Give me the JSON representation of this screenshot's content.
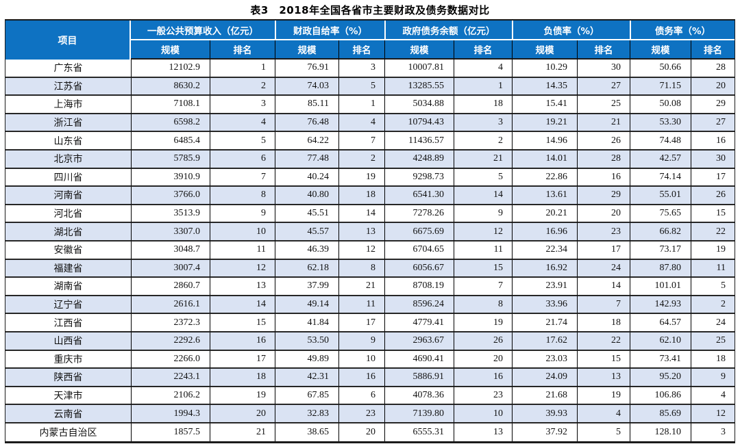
{
  "title": "表3　2018年全国各省市主要财政及债务数据对比",
  "colors": {
    "header_bg": "#0e72c2",
    "header_text": "#ffffff",
    "stripe_bg": "#dae3f3",
    "border_dark": "#1a1a1a",
    "body_text": "#111111"
  },
  "chart_data": {
    "type": "table",
    "title": "表3　2018年全国各省市主要财政及债务数据对比",
    "first_column_header": "项目",
    "column_groups": [
      "一般公共预算收入（亿元）",
      "财政自给率（%）",
      "政府债务余额（亿元）",
      "负债率（%）",
      "债务率（%）"
    ],
    "sub_headers": [
      "规模",
      "排名"
    ],
    "rows": [
      {
        "province": "广东省",
        "values": [
          "12102.9",
          "1",
          "76.91",
          "3",
          "10007.81",
          "4",
          "10.29",
          "30",
          "50.66",
          "28"
        ]
      },
      {
        "province": "江苏省",
        "values": [
          "8630.2",
          "2",
          "74.03",
          "5",
          "13285.55",
          "1",
          "14.35",
          "27",
          "71.15",
          "20"
        ]
      },
      {
        "province": "上海市",
        "values": [
          "7108.1",
          "3",
          "85.11",
          "1",
          "5034.88",
          "18",
          "15.41",
          "25",
          "50.08",
          "29"
        ]
      },
      {
        "province": "浙江省",
        "values": [
          "6598.2",
          "4",
          "76.48",
          "4",
          "10794.43",
          "3",
          "19.21",
          "21",
          "53.30",
          "27"
        ]
      },
      {
        "province": "山东省",
        "values": [
          "6485.4",
          "5",
          "64.22",
          "7",
          "11436.57",
          "2",
          "14.96",
          "26",
          "74.48",
          "16"
        ]
      },
      {
        "province": "北京市",
        "values": [
          "5785.9",
          "6",
          "77.48",
          "2",
          "4248.89",
          "21",
          "14.01",
          "28",
          "42.57",
          "30"
        ]
      },
      {
        "province": "四川省",
        "values": [
          "3910.9",
          "7",
          "40.24",
          "19",
          "9298.73",
          "5",
          "22.86",
          "16",
          "74.14",
          "17"
        ]
      },
      {
        "province": "河南省",
        "values": [
          "3766.0",
          "8",
          "40.80",
          "18",
          "6541.30",
          "14",
          "13.61",
          "29",
          "55.01",
          "26"
        ]
      },
      {
        "province": "河北省",
        "values": [
          "3513.9",
          "9",
          "45.51",
          "14",
          "7278.26",
          "9",
          "20.21",
          "20",
          "75.65",
          "15"
        ]
      },
      {
        "province": "湖北省",
        "values": [
          "3307.0",
          "10",
          "45.57",
          "13",
          "6675.69",
          "12",
          "16.96",
          "23",
          "66.82",
          "22"
        ]
      },
      {
        "province": "安徽省",
        "values": [
          "3048.7",
          "11",
          "46.39",
          "12",
          "6704.65",
          "11",
          "22.34",
          "17",
          "73.17",
          "19"
        ]
      },
      {
        "province": "福建省",
        "values": [
          "3007.4",
          "12",
          "62.18",
          "8",
          "6056.67",
          "15",
          "16.92",
          "24",
          "87.80",
          "11"
        ]
      },
      {
        "province": "湖南省",
        "values": [
          "2860.7",
          "13",
          "37.99",
          "21",
          "8708.19",
          "7",
          "23.91",
          "14",
          "101.01",
          "5"
        ]
      },
      {
        "province": "辽宁省",
        "values": [
          "2616.1",
          "14",
          "49.14",
          "11",
          "8596.24",
          "8",
          "33.96",
          "7",
          "142.93",
          "2"
        ]
      },
      {
        "province": "江西省",
        "values": [
          "2372.3",
          "15",
          "41.84",
          "17",
          "4779.41",
          "19",
          "21.74",
          "18",
          "64.57",
          "24"
        ]
      },
      {
        "province": "山西省",
        "values": [
          "2292.6",
          "16",
          "53.50",
          "9",
          "2963.67",
          "26",
          "17.62",
          "22",
          "62.10",
          "25"
        ]
      },
      {
        "province": "重庆市",
        "values": [
          "2266.0",
          "17",
          "49.89",
          "10",
          "4690.41",
          "20",
          "23.03",
          "15",
          "73.41",
          "18"
        ]
      },
      {
        "province": "陕西省",
        "values": [
          "2243.1",
          "18",
          "42.31",
          "16",
          "5886.91",
          "16",
          "24.09",
          "13",
          "95.20",
          "9"
        ]
      },
      {
        "province": "天津市",
        "values": [
          "2106.2",
          "19",
          "67.85",
          "6",
          "4078.36",
          "23",
          "21.68",
          "19",
          "106.86",
          "4"
        ]
      },
      {
        "province": "云南省",
        "values": [
          "1994.3",
          "20",
          "32.83",
          "23",
          "7139.80",
          "10",
          "39.93",
          "4",
          "85.69",
          "12"
        ]
      },
      {
        "province": "内蒙古自治区",
        "values": [
          "1857.5",
          "21",
          "38.65",
          "20",
          "6555.31",
          "13",
          "37.92",
          "5",
          "128.10",
          "3"
        ]
      }
    ]
  }
}
